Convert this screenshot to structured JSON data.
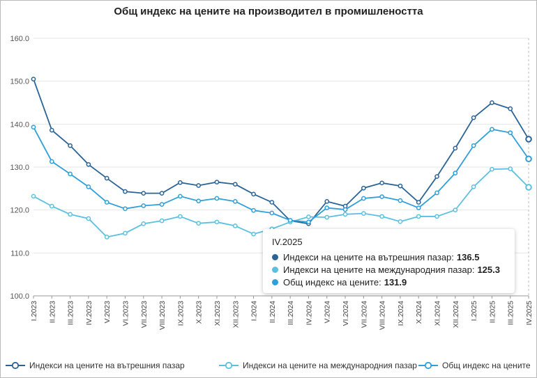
{
  "chart_data": {
    "type": "line",
    "title": "Общ индекс на цените на производител в промишлеността",
    "ylim": [
      100,
      160
    ],
    "yticks": [
      "100.0",
      "110.0",
      "120.0",
      "130.0",
      "140.0",
      "150.0",
      "160.0"
    ],
    "grid": true,
    "legend_position": "bottom",
    "categories": [
      "I.2023",
      "II.2023",
      "III.2023",
      "IV.2023",
      "V.2023",
      "VI.2023",
      "VII.2023",
      "VIII.2023",
      "IX.2023",
      "X.2023",
      "XI.2023",
      "XII.2023",
      "I.2024",
      "II.2024",
      "III.2024",
      "IV.2024",
      "V.2024",
      "VI.2024",
      "VII.2024",
      "VIII.2024",
      "IX.2024",
      "X.2024",
      "XI.2024",
      "XII.2024",
      "I.2025",
      "II.2025",
      "III.2025",
      "IV.2025"
    ],
    "series": [
      {
        "name": "Индекси на цените на вътрешния пазар",
        "color": "#2a6496",
        "values": [
          150.5,
          138.6,
          135.0,
          130.6,
          127.4,
          124.3,
          123.9,
          123.9,
          126.4,
          125.7,
          126.5,
          126.0,
          123.7,
          121.8,
          117.5,
          116.8,
          122.0,
          120.9,
          125.1,
          126.3,
          125.6,
          121.8,
          127.8,
          134.4,
          141.5,
          145.0,
          143.6,
          136.5
        ]
      },
      {
        "name": "Индекси на цените на международния пазар",
        "color": "#5bc0e0",
        "values": [
          123.2,
          120.9,
          119.0,
          118.0,
          113.7,
          114.6,
          116.8,
          117.5,
          118.5,
          116.9,
          117.2,
          116.3,
          114.4,
          115.6,
          117.2,
          118.4,
          118.3,
          119.0,
          119.2,
          118.5,
          117.3,
          118.5,
          118.5,
          120.0,
          125.4,
          129.5,
          129.6,
          125.3
        ]
      },
      {
        "name": "Общ индекс на цените",
        "color": "#2e9fd8",
        "values": [
          139.3,
          131.3,
          128.4,
          125.4,
          121.8,
          120.3,
          121.0,
          121.3,
          123.2,
          122.1,
          122.7,
          122.0,
          119.9,
          119.3,
          117.6,
          117.2,
          120.5,
          120.1,
          122.7,
          123.1,
          122.2,
          120.5,
          124.0,
          128.6,
          135.0,
          138.8,
          138.0,
          131.9
        ]
      }
    ]
  },
  "tooltip": {
    "header": "IV.2025",
    "rows": [
      {
        "label": "Индекси на цените на вътрешния пазар:",
        "value": "136.5",
        "color": "#2a6496"
      },
      {
        "label": "Индекси на цените на международния пазар:",
        "value": "125.3",
        "color": "#5bc0e0"
      },
      {
        "label": "Общ индекс на цените:",
        "value": "131.9",
        "color": "#2e9fd8"
      }
    ]
  },
  "legend": [
    {
      "label": "Индекси на цените на вътрешния пазар",
      "color": "#2a6496"
    },
    {
      "label": "Индекси на цените на международния пазар",
      "color": "#5bc0e0"
    },
    {
      "label": "Общ индекс на цените",
      "color": "#2e9fd8"
    }
  ]
}
